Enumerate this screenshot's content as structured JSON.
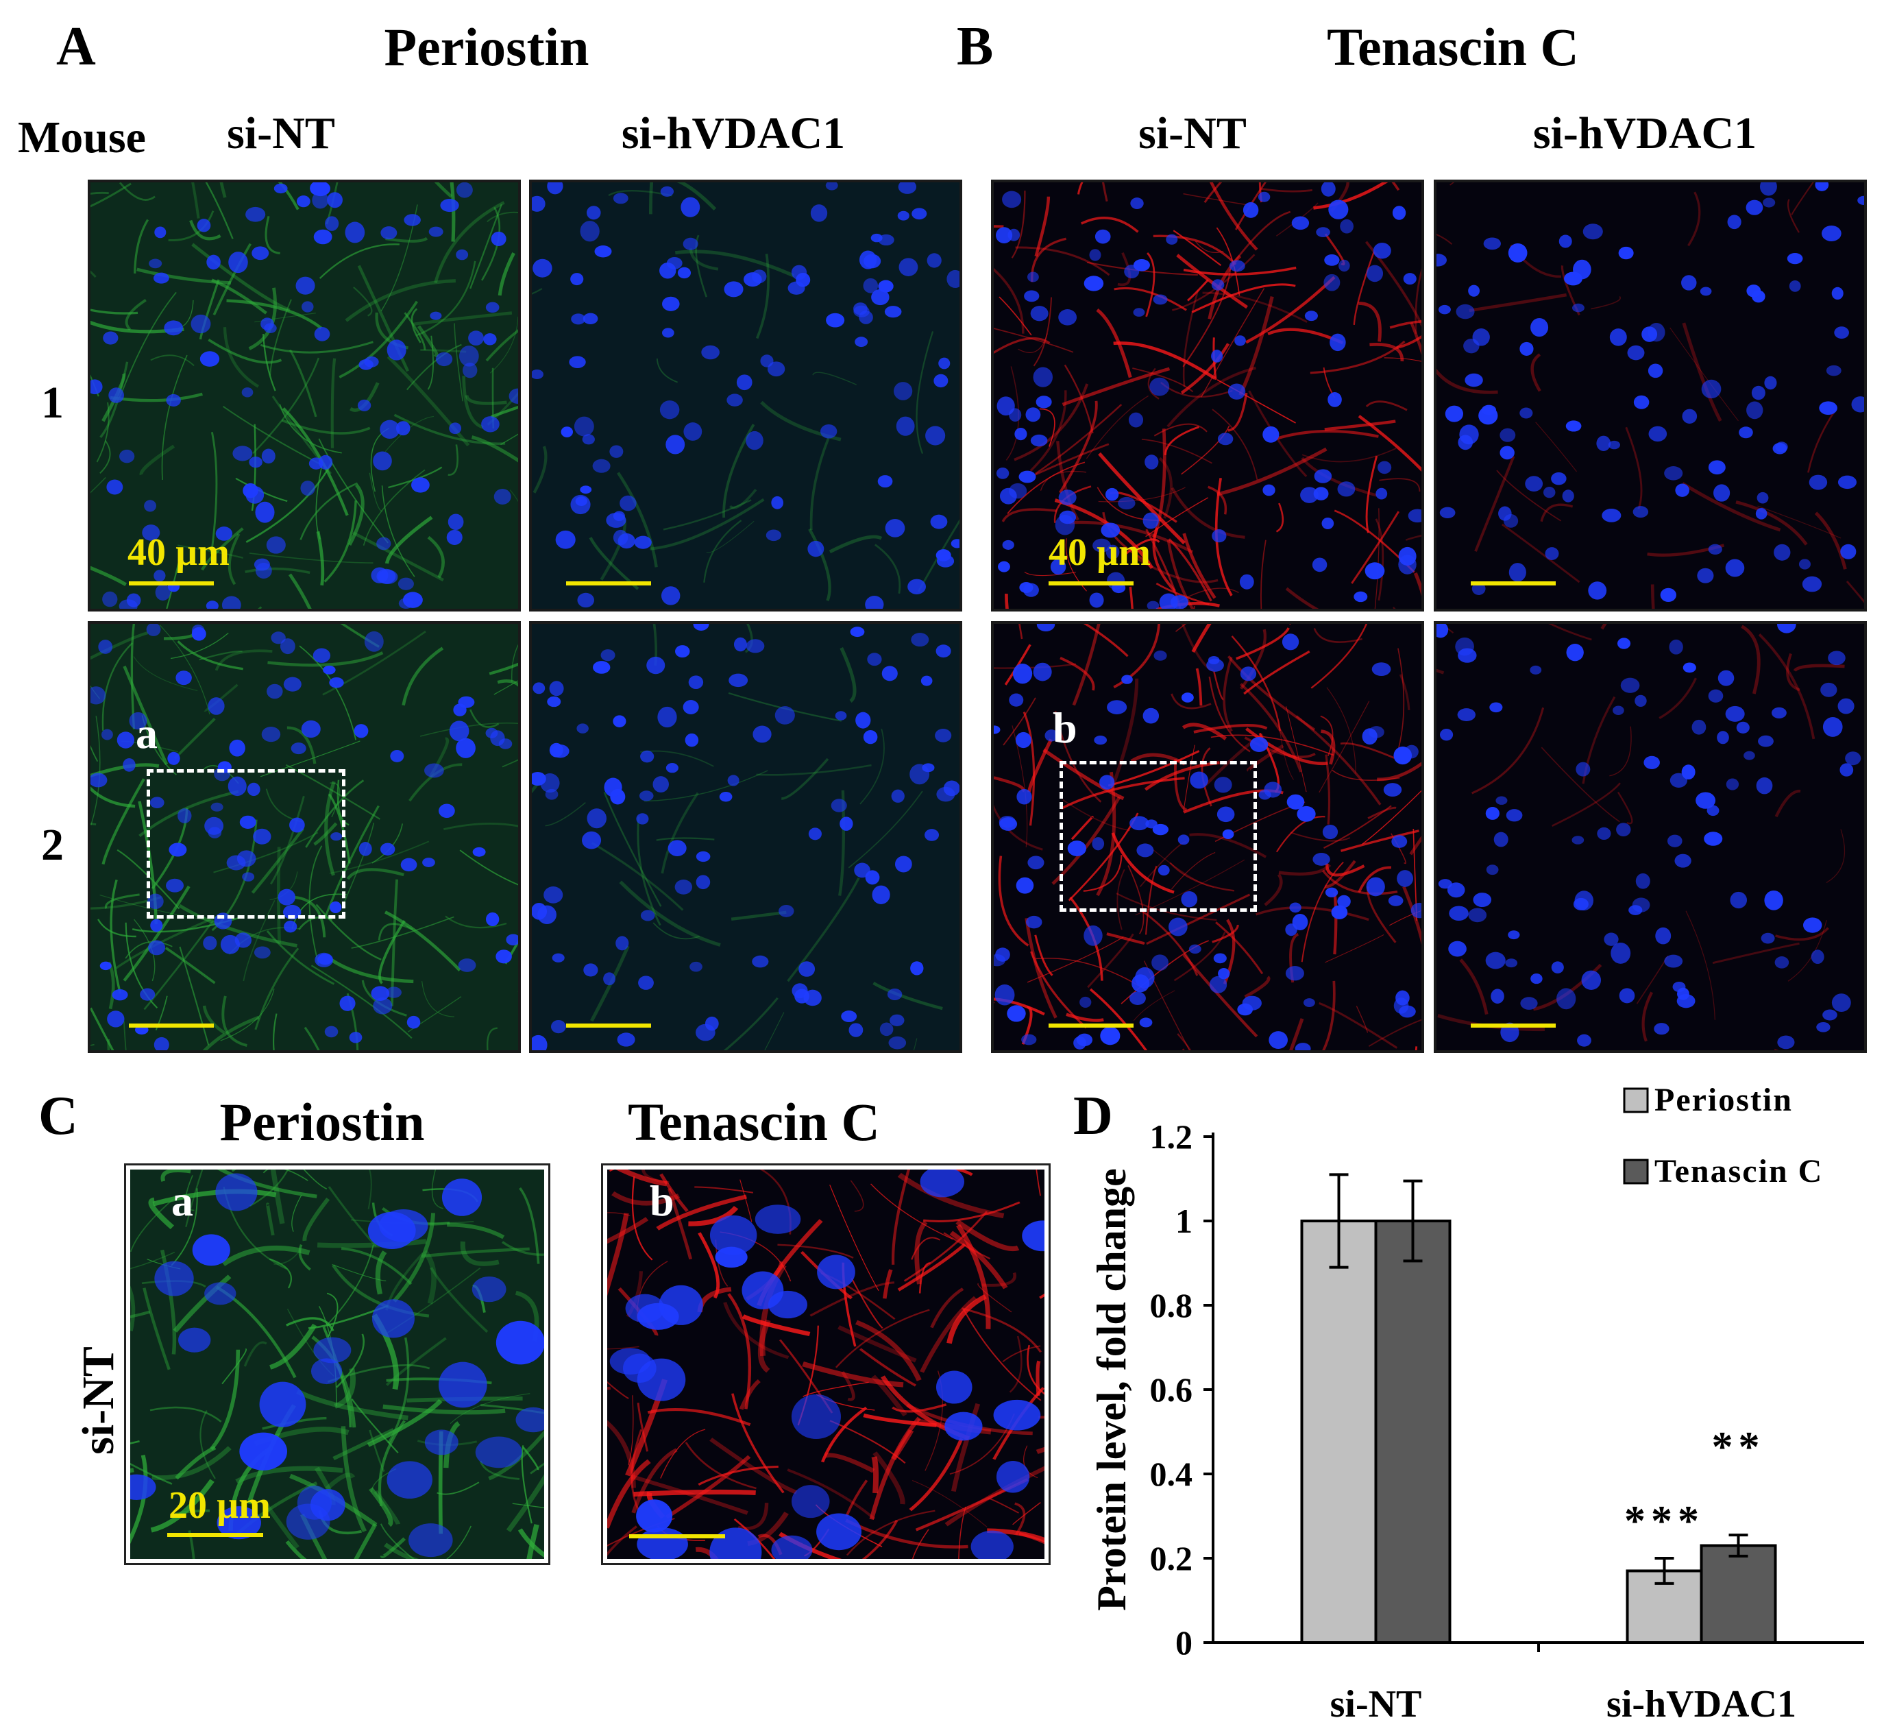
{
  "panels": {
    "A": {
      "letter": "A",
      "title": "Periostin"
    },
    "B": {
      "letter": "B",
      "title": "Tenascin C"
    },
    "C": {
      "letter": "C",
      "title_left": "Periostin",
      "title_right": "Tenascin C",
      "row_label": "si-NT",
      "inset_left": "a",
      "inset_right": "b",
      "scale": "20 µm"
    },
    "D": {
      "letter": "D"
    }
  },
  "grid": {
    "mouse_label": "Mouse",
    "rows": [
      "1",
      "2"
    ],
    "columns": [
      "si-NT",
      "si-hVDAC1"
    ],
    "scale": "40 µm",
    "roi_a": "a",
    "roi_b": "b"
  },
  "colors": {
    "periostin_stain": "#2fae3a",
    "tenascin_stain": "#ff1a1a",
    "nuclei": "#1f3cff",
    "scale_bar": "#f2e600",
    "bar_periostin": "#c0c0c0",
    "bar_tenascin": "#5a5a5a"
  },
  "chart_data": {
    "type": "bar",
    "categories": [
      "si-NT",
      "si-hVDAC1"
    ],
    "series": [
      {
        "name": "Periostin",
        "values": [
          1.0,
          0.17
        ],
        "errors": [
          0.11,
          0.03
        ],
        "color": "#c0c0c0"
      },
      {
        "name": "Tenascin C",
        "values": [
          1.0,
          0.23
        ],
        "errors": [
          0.095,
          0.025
        ],
        "color": "#5a5a5a"
      }
    ],
    "annotations": [
      {
        "category": "si-hVDAC1",
        "series": "Periostin",
        "text": "***"
      },
      {
        "category": "si-hVDAC1",
        "series": "Tenascin C",
        "text": "**"
      }
    ],
    "ylabel": "Protein level, fold change",
    "xlabel": "",
    "ylim": [
      0,
      1.2
    ],
    "yticks": [
      "0",
      "0.2",
      "0.4",
      "0.6",
      "0.8",
      "1",
      "1.2"
    ],
    "legend": "top-right",
    "grid": false
  }
}
